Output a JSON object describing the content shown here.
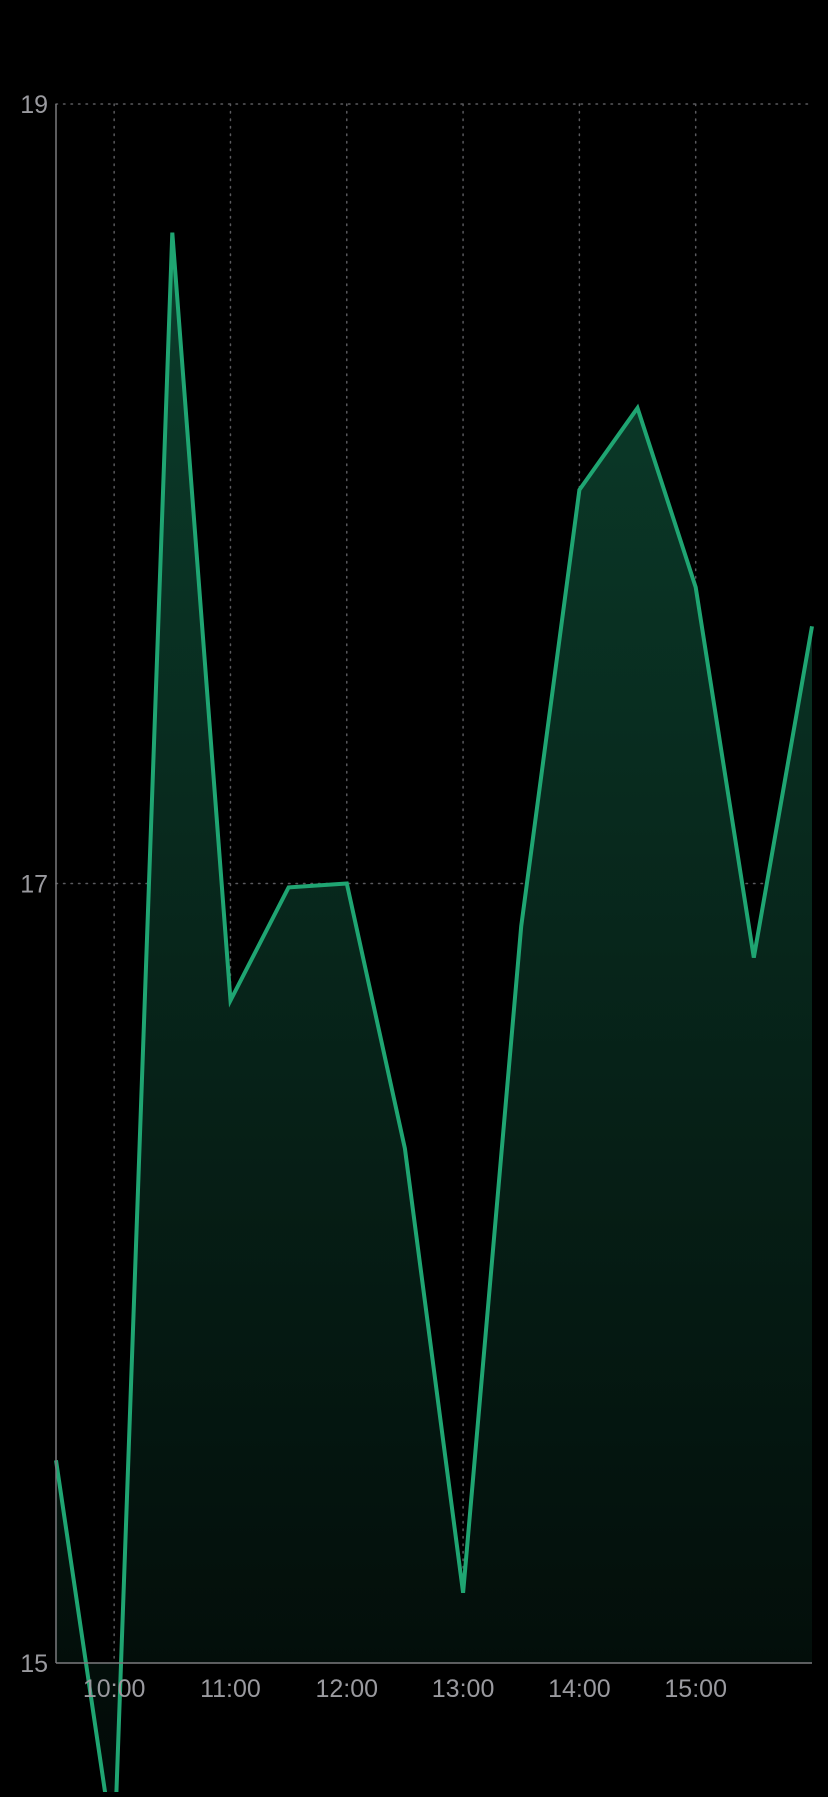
{
  "colors": {
    "background": "#000000",
    "line": "#1fa572",
    "fill_top": "#0b3d2b",
    "fill_bottom": "#020806",
    "grid": "#5a5a5e",
    "axis": "#7a7a7e",
    "label": "#9a9a9f"
  },
  "chart_data": {
    "type": "area",
    "x_labels": [
      "10:00",
      "11:00",
      "12:00",
      "13:00",
      "14:00",
      "15:00"
    ],
    "x_label_positions": [
      1,
      3,
      5,
      7,
      9,
      11
    ],
    "y_ticks": [
      15,
      17,
      19
    ],
    "ylim": [
      15,
      19
    ],
    "x_range": [
      0,
      13
    ],
    "grid": true,
    "x": [
      0,
      1,
      2,
      3,
      4,
      5,
      6,
      7,
      8,
      9,
      10,
      11,
      12,
      13
    ],
    "values": [
      15.52,
      14.51,
      18.67,
      16.7,
      16.99,
      17.0,
      16.32,
      15.18,
      16.89,
      18.01,
      18.22,
      17.76,
      16.81,
      17.66
    ]
  }
}
